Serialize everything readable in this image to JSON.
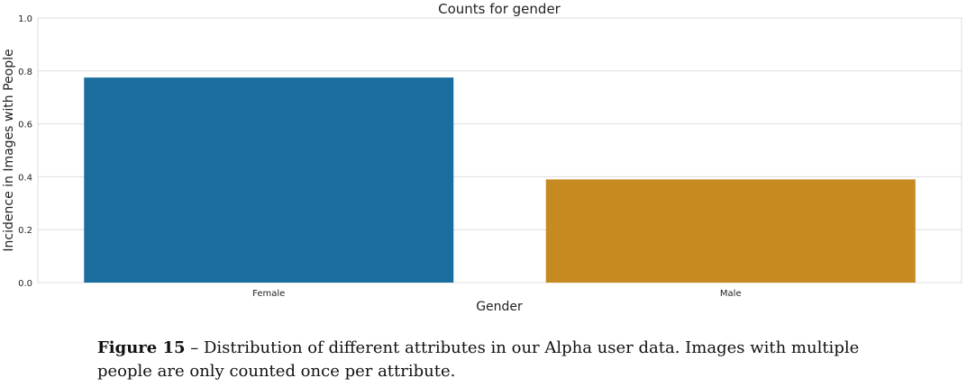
{
  "chart_data": {
    "type": "bar",
    "title": "Counts for gender",
    "xlabel": "Gender",
    "ylabel": "Incidence in Images with People",
    "categories": [
      "Female",
      "Male"
    ],
    "values": [
      0.775,
      0.39
    ],
    "ylim": [
      0,
      1.0
    ],
    "yticks": [
      "0.0",
      "0.2",
      "0.4",
      "0.6",
      "0.8",
      "1.0"
    ],
    "grid": true,
    "colors": [
      "#1a6e9e",
      "#c58a20"
    ]
  },
  "caption": {
    "label": "Figure 15",
    "text": " – Distribution of different attributes in our Alpha user data. Images with multiple people are only counted once per attribute."
  }
}
